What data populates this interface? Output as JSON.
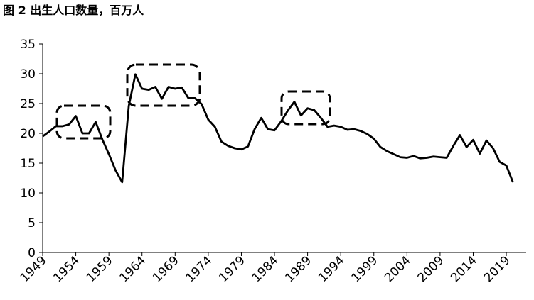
{
  "chart_data": {
    "type": "line",
    "title": "图 2 出生人口数量，百万人",
    "x": [
      1949,
      1950,
      1951,
      1952,
      1953,
      1954,
      1955,
      1956,
      1957,
      1958,
      1959,
      1960,
      1961,
      1962,
      1963,
      1964,
      1965,
      1966,
      1967,
      1968,
      1969,
      1970,
      1971,
      1972,
      1973,
      1974,
      1975,
      1976,
      1977,
      1978,
      1979,
      1980,
      1981,
      1982,
      1983,
      1984,
      1985,
      1986,
      1987,
      1988,
      1989,
      1990,
      1991,
      1992,
      1993,
      1994,
      1995,
      1996,
      1997,
      1998,
      1999,
      2000,
      2001,
      2002,
      2003,
      2004,
      2005,
      2006,
      2007,
      2008,
      2009,
      2010,
      2011,
      2012,
      2013,
      2014,
      2015,
      2016,
      2017,
      2018,
      2019,
      2020
    ],
    "values": [
      19.5,
      20.3,
      21.2,
      21.2,
      21.5,
      22.9,
      20.0,
      20.0,
      21.9,
      19.0,
      16.5,
      13.8,
      11.8,
      24.6,
      29.9,
      27.5,
      27.3,
      27.8,
      25.8,
      27.8,
      27.5,
      27.7,
      25.9,
      25.9,
      24.9,
      22.3,
      21.1,
      18.6,
      17.9,
      17.5,
      17.3,
      17.8,
      20.7,
      22.6,
      20.7,
      20.5,
      22.0,
      23.8,
      25.3,
      23.0,
      24.2,
      23.9,
      22.6,
      21.1,
      21.3,
      21.1,
      20.6,
      20.7,
      20.4,
      19.9,
      19.1,
      17.7,
      17.0,
      16.5,
      16.0,
      15.9,
      16.2,
      15.8,
      15.9,
      16.1,
      16.0,
      15.9,
      17.9,
      19.7,
      17.7,
      18.9,
      16.6,
      18.8,
      17.5,
      15.2,
      14.6,
      11.8
    ],
    "color": "#000000",
    "xlim": [
      1949,
      2022
    ],
    "xticks": [
      1949,
      1954,
      1959,
      1964,
      1969,
      1974,
      1979,
      1984,
      1989,
      1994,
      1999,
      2004,
      2009,
      2014,
      2019
    ],
    "ylim": [
      0,
      35
    ],
    "yticks": [
      0,
      5,
      10,
      15,
      20,
      25,
      30,
      35
    ],
    "grid": false
  }
}
